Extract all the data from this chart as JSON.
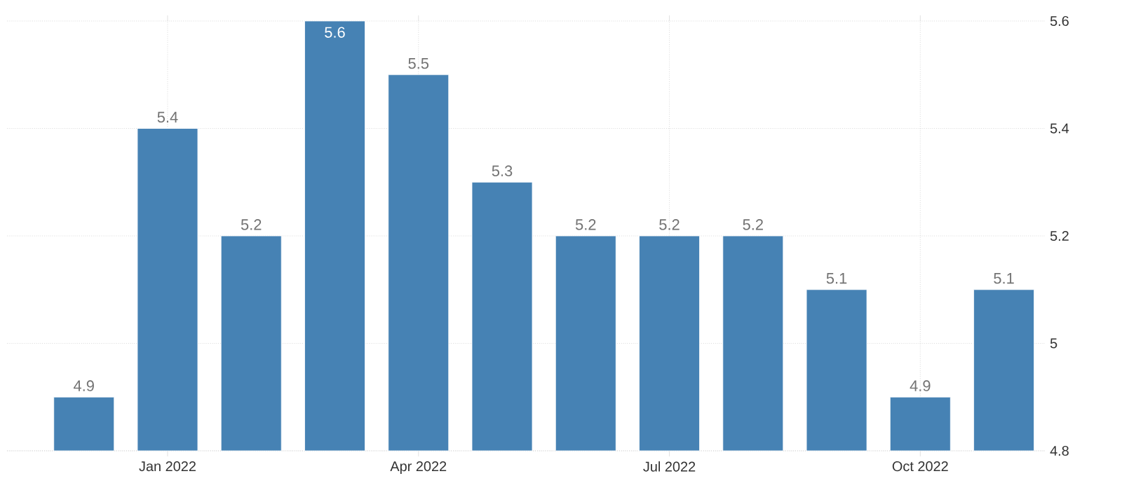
{
  "chart_data": {
    "type": "bar",
    "categories": [
      null,
      "Jan 2022",
      null,
      null,
      "Apr 2022",
      null,
      null,
      "Jul 2022",
      null,
      null,
      "Oct 2022",
      null
    ],
    "values": [
      4.9,
      5.4,
      5.2,
      5.6,
      5.5,
      5.3,
      5.2,
      5.2,
      5.2,
      5.1,
      4.9,
      5.1
    ],
    "color": "#4682b4",
    "ylim": [
      4.8,
      5.6
    ],
    "yticks": [
      4.8,
      5,
      5.2,
      5.4,
      5.6
    ],
    "grid": true,
    "data_labels": true
  }
}
